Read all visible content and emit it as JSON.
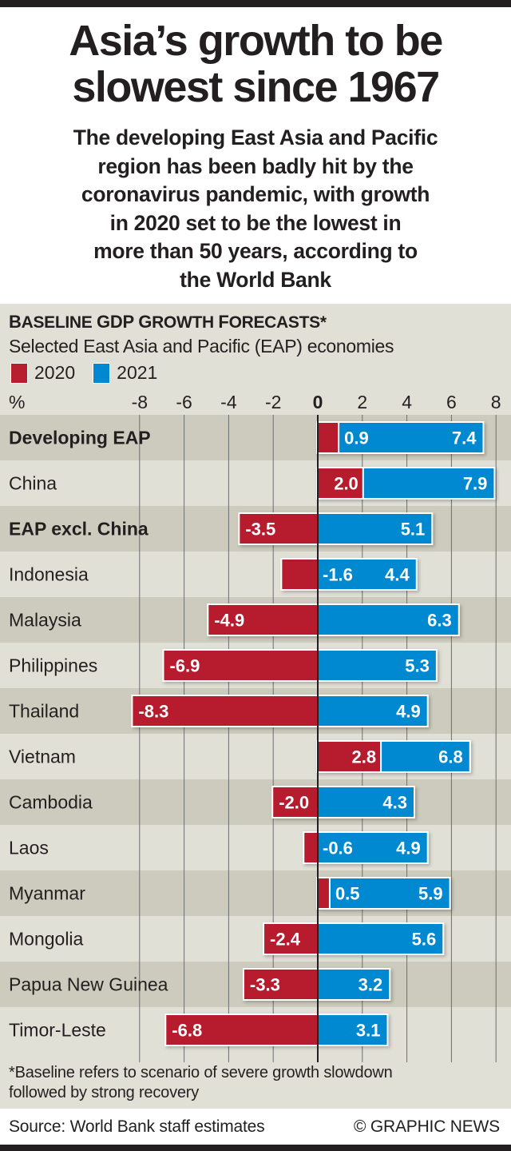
{
  "header": {
    "title_line1": "Asia’s growth to be",
    "title_line2": "slowest since 1967",
    "subtitle_lines": [
      "The developing East Asia and Pacific",
      "region has been badly hit by the",
      "coronavirus pandemic, with growth",
      "in 2020 set to be the lowest in",
      "more than 50 years, according to",
      "the World Bank"
    ]
  },
  "colors": {
    "series_2020": "#b71f2e",
    "series_2021": "#0089d0",
    "band_dark": "#cdcbbd",
    "band_light": "#e1e0d7",
    "text": "#231f20"
  },
  "chart_data": {
    "type": "bar",
    "orientation": "horizontal",
    "title": "Baseline GDP Growth Forecasts*",
    "subtitle": "Selected East Asia and Pacific (EAP) economies",
    "unit_label": "%",
    "xlim": [
      -8,
      8
    ],
    "xticks": [
      -8,
      -6,
      -4,
      -2,
      0,
      2,
      4,
      6,
      8
    ],
    "xtick_labels": [
      "-8",
      "-6",
      "-4",
      "-2",
      "0",
      "2",
      "4",
      "6",
      "8"
    ],
    "grid": true,
    "legend": [
      {
        "label": "2020",
        "color": "#b71f2e"
      },
      {
        "label": "2021",
        "color": "#0089d0"
      }
    ],
    "legend_placement": "top-left",
    "categories": [
      "Developing EAP",
      "China",
      "EAP excl. China",
      "Indonesia",
      "Malaysia",
      "Philippines",
      "Thailand",
      "Vietnam",
      "Cambodia",
      "Laos",
      "Myanmar",
      "Mongolia",
      "Papua New Guinea",
      "Timor-Leste"
    ],
    "bold_categories": [
      "Developing EAP",
      "EAP excl. China"
    ],
    "series": [
      {
        "name": "2020",
        "values": [
          0.9,
          2.0,
          -3.5,
          -1.6,
          -4.9,
          -6.9,
          -8.3,
          2.8,
          -2.0,
          -0.6,
          0.5,
          -2.4,
          -3.3,
          -6.8
        ],
        "labels": [
          "0.9",
          "2.0",
          "-3.5",
          "-1.6",
          "-4.9",
          "-6.9",
          "-8.3",
          "2.8",
          "-2.0",
          "-0.6",
          "0.5",
          "-2.4",
          "-3.3",
          "-6.8"
        ]
      },
      {
        "name": "2021",
        "values": [
          7.4,
          7.9,
          5.1,
          4.4,
          6.3,
          5.3,
          4.9,
          6.8,
          4.3,
          4.9,
          5.9,
          5.6,
          3.2,
          3.1
        ],
        "labels": [
          "7.4",
          "7.9",
          "5.1",
          "4.4",
          "6.3",
          "5.3",
          "4.9",
          "6.8",
          "4.3",
          "4.9",
          "5.9",
          "5.6",
          "3.2",
          "3.1"
        ]
      }
    ],
    "footnote": "*Baseline refers to scenario of severe growth slowdown followed by strong recovery"
  },
  "panel": {
    "title_parts": [
      "B",
      "ASELINE ",
      "GDP G",
      "ROWTH ",
      "F",
      "ORECASTS*"
    ],
    "subtitle": "Selected East Asia and Pacific (EAP) economies",
    "legend_2020": "2020",
    "legend_2021": "2021",
    "unit": "%"
  },
  "footer": {
    "footnote_line1": "*Baseline refers to scenario of severe growth slowdown",
    "footnote_line2": "followed by strong recovery",
    "source": "Source: World Bank staff estimates",
    "credit": "© GRAPHIC NEWS"
  }
}
